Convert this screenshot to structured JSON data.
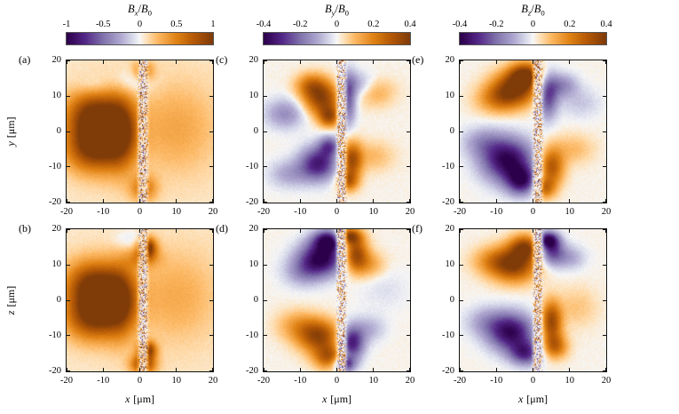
{
  "figure": {
    "background": "#ffffff",
    "text_color": "#000000",
    "columns": [
      {
        "title_parts": {
          "b1": "B",
          "s1": "x",
          "sl": "/",
          "b2": "B",
          "s2": "0"
        },
        "cbar_ticks": [
          "-1",
          "-0.5",
          "0",
          "0.5",
          "1"
        ],
        "clim": [
          -1,
          1
        ]
      },
      {
        "title_parts": {
          "b1": "B",
          "s1": "y",
          "sl": "/",
          "b2": "B",
          "s2": "0"
        },
        "cbar_ticks": [
          "-0.4",
          "-0.2",
          "0",
          "0.2",
          "0.4"
        ],
        "clim": [
          -0.4,
          0.4
        ]
      },
      {
        "title_parts": {
          "b1": "B",
          "s1": "z",
          "sl": "/",
          "b2": "B",
          "s2": "0"
        },
        "cbar_ticks": [
          "-0.4",
          "-0.2",
          "0",
          "0.2",
          "0.4"
        ],
        "clim": [
          -0.4,
          0.4
        ]
      }
    ],
    "x_axis": {
      "var": "x",
      "unit": "[μm]",
      "ticks": [
        "-20",
        "-10",
        "0",
        "10",
        "20"
      ],
      "range": [
        -20,
        20
      ]
    },
    "rows": [
      {
        "var": "y",
        "unit": "[μm]",
        "ticks": [
          "20",
          "10",
          "0",
          "-10",
          "-20"
        ],
        "range": [
          -20,
          20
        ]
      },
      {
        "var": "z",
        "unit": "[μm]",
        "ticks": [
          "20",
          "10",
          "0",
          "-10",
          "-20"
        ],
        "range": [
          -20,
          20
        ]
      }
    ],
    "colormap_stops": [
      [
        0,
        "#2d004b"
      ],
      [
        0.125,
        "#542788"
      ],
      [
        0.25,
        "#8073ac"
      ],
      [
        0.375,
        "#b2abd2"
      ],
      [
        0.45,
        "#d8daeb"
      ],
      [
        0.5,
        "#f7f7f7"
      ],
      [
        0.55,
        "#fee0b6"
      ],
      [
        0.625,
        "#fdb863"
      ],
      [
        0.75,
        "#e08214"
      ],
      [
        0.875,
        "#b35806"
      ],
      [
        1,
        "#7f3b08"
      ]
    ]
  },
  "chart_data": [
    {
      "type": "heatmap",
      "panel": "(a)",
      "quantity": "Bx/B0",
      "plane": "x-y",
      "col": 0,
      "row": 0,
      "x_range": [
        -20,
        20
      ],
      "y_range": [
        -20,
        20
      ],
      "clim": [
        -1,
        1
      ],
      "base": 0.07,
      "strip": {
        "cx": 0.9,
        "hw": 1.5,
        "seed": 1
      },
      "blobs": [
        [
          -10,
          0,
          5.5,
          6.5,
          0.95
        ],
        [
          -14,
          5,
          5,
          4.5,
          0.5
        ],
        [
          -14,
          -5,
          5,
          4.5,
          0.5
        ],
        [
          -5,
          0,
          3,
          7.5,
          0.55
        ],
        [
          10,
          1,
          8,
          9,
          0.26
        ],
        [
          -2,
          14,
          4,
          2.5,
          -0.2
        ],
        [
          -13,
          13,
          3,
          2,
          -0.12
        ],
        [
          1,
          17,
          2,
          2,
          0.45
        ],
        [
          1,
          -16,
          2.5,
          2.5,
          0.5
        ]
      ]
    },
    {
      "type": "heatmap",
      "panel": "(b)",
      "quantity": "Bx/B0",
      "plane": "x-z",
      "col": 0,
      "row": 1,
      "x_range": [
        -20,
        20
      ],
      "y_range": [
        -20,
        20
      ],
      "clim": [
        -1,
        1
      ],
      "base": 0.07,
      "strip": {
        "cx": 0.9,
        "hw": 1.5,
        "seed": 2
      },
      "blobs": [
        [
          -10,
          0,
          5.5,
          6,
          0.95
        ],
        [
          -14,
          5,
          5,
          4.5,
          0.5
        ],
        [
          -14,
          -5,
          5,
          4.5,
          0.5
        ],
        [
          -5,
          0,
          3,
          7.5,
          0.5
        ],
        [
          10,
          1,
          8,
          9,
          0.24
        ],
        [
          2,
          15,
          1.7,
          1.9,
          0.95
        ],
        [
          1,
          12,
          3,
          2,
          0.4
        ],
        [
          2,
          -14,
          1.7,
          1.7,
          0.9
        ],
        [
          1,
          -18,
          2.3,
          1.9,
          0.85
        ],
        [
          -3,
          17,
          3,
          2,
          -0.15
        ]
      ]
    },
    {
      "type": "heatmap",
      "panel": "(c)",
      "quantity": "By/B0",
      "plane": "x-y",
      "col": 1,
      "row": 0,
      "x_range": [
        -20,
        20
      ],
      "y_range": [
        -20,
        20
      ],
      "clim": [
        -0.4,
        0.4
      ],
      "base": 0.02,
      "strip": {
        "cx": 1.3,
        "hw": 1.4,
        "seed": 3
      },
      "blobs": [
        [
          -4,
          9,
          3.6,
          3.4,
          0.85
        ],
        [
          -7,
          13,
          3,
          2.4,
          0.5
        ],
        [
          -2,
          4,
          2,
          2,
          0.65
        ],
        [
          -14,
          5,
          4,
          3,
          -0.4
        ],
        [
          3,
          9,
          1.6,
          5,
          -0.7
        ],
        [
          6,
          13,
          3,
          2.6,
          -0.35
        ],
        [
          10,
          11,
          4,
          2.8,
          0.3
        ],
        [
          -5,
          -9,
          3.6,
          3.4,
          -0.85
        ],
        [
          -2,
          -4,
          2,
          2,
          -0.55
        ],
        [
          -13,
          -12,
          4,
          2.8,
          -0.3
        ],
        [
          4,
          -8,
          2,
          3.6,
          0.8
        ],
        [
          3,
          -14,
          2,
          2,
          0.6
        ],
        [
          10,
          -7,
          4,
          3,
          0.22
        ]
      ]
    },
    {
      "type": "heatmap",
      "panel": "(d)",
      "quantity": "By/B0",
      "plane": "x-z",
      "col": 1,
      "row": 1,
      "x_range": [
        -20,
        20
      ],
      "y_range": [
        -20,
        20
      ],
      "clim": [
        -0.4,
        0.4
      ],
      "base": 0.02,
      "strip": {
        "cx": 1.3,
        "hw": 1.4,
        "seed": 4
      },
      "blobs": [
        [
          -4,
          12,
          4.4,
          3.4,
          -1.0
        ],
        [
          -2,
          17,
          3,
          2,
          -0.9
        ],
        [
          -9,
          8,
          4,
          3,
          -0.35
        ],
        [
          5,
          13,
          2.4,
          3.4,
          0.9
        ],
        [
          3,
          18,
          2.4,
          1.6,
          0.95
        ],
        [
          9,
          10,
          3,
          2.6,
          0.3
        ],
        [
          -5,
          -10,
          4,
          3.2,
          0.85
        ],
        [
          -2,
          -16,
          3,
          2.4,
          0.7
        ],
        [
          -11,
          -7,
          4,
          3,
          0.3
        ],
        [
          4,
          -12,
          2.4,
          3.4,
          -0.9
        ],
        [
          2,
          -18,
          2,
          1.6,
          -0.8
        ],
        [
          9,
          -8,
          3,
          2.6,
          -0.25
        ],
        [
          13,
          3,
          5,
          4,
          -0.1
        ]
      ]
    },
    {
      "type": "heatmap",
      "panel": "(e)",
      "quantity": "Bz/B0",
      "plane": "x-y",
      "col": 2,
      "row": 0,
      "x_range": [
        -20,
        20
      ],
      "y_range": [
        -20,
        20
      ],
      "clim": [
        -0.4,
        0.4
      ],
      "base": 0.02,
      "strip": {
        "cx": 1.3,
        "hw": 1.4,
        "seed": 5
      },
      "blobs": [
        [
          -5,
          12,
          4.4,
          3.4,
          0.95
        ],
        [
          -2,
          16,
          3,
          2.4,
          0.85
        ],
        [
          -10,
          9,
          4,
          2.8,
          0.4
        ],
        [
          4,
          10,
          2,
          4.4,
          -0.7
        ],
        [
          8,
          13,
          3,
          2.4,
          -0.4
        ],
        [
          13,
          8,
          4,
          3,
          -0.18
        ],
        [
          -7,
          -8,
          5,
          4.4,
          -1.0
        ],
        [
          -3,
          -14,
          3,
          2.8,
          -0.8
        ],
        [
          -14,
          -3,
          4,
          3,
          -0.3
        ],
        [
          5,
          -10,
          2.4,
          3.8,
          0.75
        ],
        [
          3,
          -16,
          2,
          2,
          0.6
        ],
        [
          11,
          -5,
          4,
          3,
          0.22
        ]
      ]
    },
    {
      "type": "heatmap",
      "panel": "(f)",
      "quantity": "Bz/B0",
      "plane": "x-z",
      "col": 2,
      "row": 1,
      "x_range": [
        -20,
        20
      ],
      "y_range": [
        -20,
        20
      ],
      "clim": [
        -0.4,
        0.4
      ],
      "base": 0.02,
      "strip": {
        "cx": 1.3,
        "hw": 1.4,
        "seed": 6
      },
      "blobs": [
        [
          -5,
          10,
          4.4,
          3.4,
          0.9
        ],
        [
          -2,
          15,
          3,
          2.4,
          0.8
        ],
        [
          -11,
          11,
          4,
          2.8,
          0.35
        ],
        [
          5,
          14,
          2.4,
          2.8,
          -0.7
        ],
        [
          4,
          17,
          2,
          1.6,
          -0.85
        ],
        [
          10,
          12,
          3,
          2.4,
          -0.3
        ],
        [
          -6,
          -9,
          4.4,
          3.8,
          -0.95
        ],
        [
          -2,
          -15,
          3,
          2.4,
          -0.7
        ],
        [
          -13,
          -6,
          4,
          3,
          -0.28
        ],
        [
          5,
          -6,
          2,
          4,
          0.85
        ],
        [
          6,
          -13,
          2.4,
          2.4,
          0.6
        ],
        [
          12,
          -2,
          4,
          4,
          0.18
        ]
      ]
    }
  ]
}
